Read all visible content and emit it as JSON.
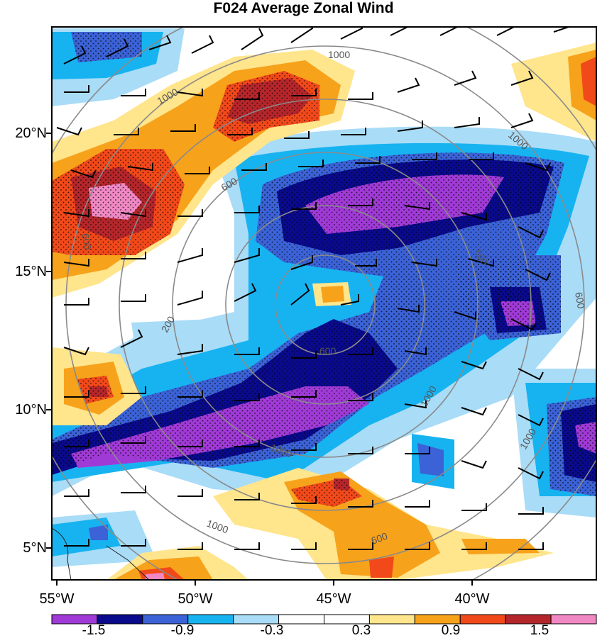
{
  "title": "F024 Average Zonal Wind",
  "lat_labels": [
    "20°N",
    "15°N",
    "10°N",
    "5°N"
  ],
  "lon_labels": [
    "55°W",
    "50°W",
    "45°W",
    "40°W"
  ],
  "colorbar": {
    "colors": [
      "#a03ad6",
      "#0a0a8c",
      "#3b62d6",
      "#17b3f0",
      "#a9dcf7",
      "#ffffff",
      "#ffffff",
      "#ffe58c",
      "#f7a21b",
      "#f2491a",
      "#b5262b",
      "#f088c4"
    ],
    "labels": [
      "-1.5",
      "-0.9",
      "-0.3",
      "0.3",
      "0.9",
      "1.5"
    ]
  },
  "contour_labels": [
    "1000",
    "1000",
    "1000",
    "600",
    "600",
    "600",
    "200",
    "600",
    "1000",
    "1000",
    "1000",
    "1000",
    "600",
    "600"
  ]
}
